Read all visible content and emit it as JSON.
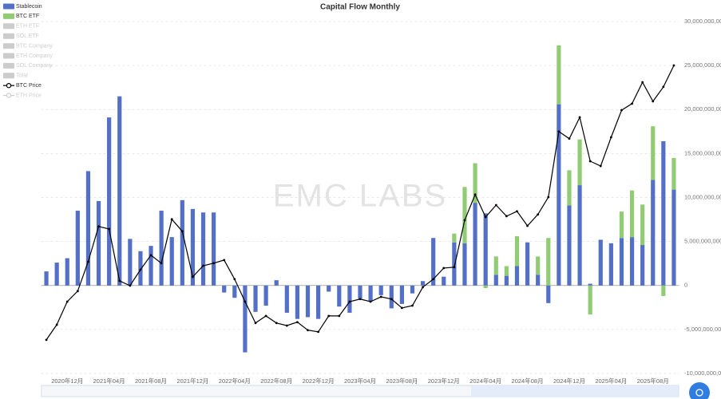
{
  "chart_data": {
    "type": "bar",
    "title": "Capital Flow Monthly",
    "watermark": "EMC LABS",
    "categories": [
      null,
      null,
      "2020年12月",
      null,
      null,
      null,
      "2021年04月",
      null,
      null,
      null,
      "2021年08月",
      null,
      null,
      null,
      "2021年12月",
      null,
      null,
      null,
      "2022年04月",
      null,
      null,
      null,
      "2022年08月",
      null,
      null,
      null,
      "2022年12月",
      null,
      null,
      null,
      "2023年04月",
      null,
      null,
      null,
      "2023年08月",
      null,
      null,
      null,
      "2023年12月",
      null,
      null,
      null,
      "2024年04月",
      null,
      null,
      null,
      "2024年08月",
      null,
      null,
      null,
      "2024年12月",
      null,
      null,
      null,
      "2025年04月",
      null,
      null,
      null,
      "2025年08月",
      null,
      null
    ],
    "series": [
      {
        "name": "Stablecoin",
        "color": "#5470c6",
        "values": [
          1600000000,
          2600000000,
          3100000000,
          8500000000,
          13000000000,
          9600000000,
          19100000000,
          21500000000,
          5300000000,
          3900000000,
          4500000000,
          8500000000,
          5500000000,
          9700000000,
          8700000000,
          8300000000,
          8300000000,
          -800000000,
          -1400000000,
          -7600000000,
          -3000000000,
          -2300000000,
          600000000,
          -3100000000,
          -3800000000,
          -3600000000,
          -3800000000,
          -700000000,
          -2400000000,
          -3100000000,
          -1500000000,
          -1800000000,
          -1100000000,
          -2600000000,
          -2100000000,
          -900000000,
          500000000,
          5400000000,
          1000000000,
          4900000000,
          4800000000,
          9400000000,
          8200000000,
          1200000000,
          1100000000,
          2200000000,
          4900000000,
          1200000000,
          -2000000000,
          20600000000,
          9100000000,
          11400000000,
          200000000,
          5200000000,
          4800000000,
          5400000000,
          5500000000,
          4600000000,
          12000000000,
          16400000000,
          10900000000
        ]
      },
      {
        "name": "BTC ETF",
        "color": "#91cc75",
        "values": [
          null,
          null,
          null,
          null,
          null,
          null,
          null,
          null,
          null,
          null,
          null,
          null,
          null,
          null,
          null,
          null,
          null,
          null,
          null,
          null,
          null,
          null,
          null,
          null,
          null,
          null,
          null,
          null,
          null,
          null,
          null,
          null,
          null,
          null,
          null,
          null,
          null,
          null,
          null,
          1000000000,
          6400000000,
          4500000000,
          -300000000,
          2100000000,
          1100000000,
          3400000000,
          0,
          2100000000,
          5400000000,
          6700000000,
          4000000000,
          5200000000,
          -3300000000,
          0,
          0,
          3000000000,
          5300000000,
          4600000000,
          6100000000,
          -1200000000,
          3600000000
        ]
      },
      {
        "name": "BTC Price",
        "color": "#000000",
        "type": "line",
        "axis": "y2",
        "values": [
          13800,
          19100,
          27200,
          30900,
          41200,
          53600,
          52700,
          34500,
          32800,
          38400,
          43500,
          40700,
          56100,
          51900,
          35900,
          39800,
          40700,
          41800,
          35100,
          27200,
          19700,
          22200,
          19700,
          18800,
          20000,
          17200,
          16600,
          22200,
          22200,
          27200,
          28100,
          27200,
          28900,
          28100,
          25000,
          25800,
          32300,
          35100,
          39000,
          39300,
          55800,
          64800,
          56900,
          61100,
          57200,
          58900,
          53800,
          57800,
          63900,
          86900,
          84400,
          91900,
          76500,
          74800,
          84900,
          94400,
          96700,
          104200,
          97500,
          102600,
          110100
        ]
      }
    ],
    "inactive_bar_series": [
      "ETH ETF",
      "SOL ETF",
      "BTC Company",
      "ETH Company",
      "SOL Company",
      "Total"
    ],
    "inactive_line_series": [
      "ETH Price"
    ],
    "inactive_color": "#cccccc",
    "ylim": [
      -10000000000,
      30000000000
    ],
    "yticks": [
      {
        "value": -10000000000,
        "label": "-10,000,000,000"
      },
      {
        "value": -5000000000,
        "label": "-5,000,000,000"
      },
      0,
      {
        "value": 5000000000,
        "label": "5,000,000,000"
      },
      {
        "value": 10000000000,
        "label": "10,000,000,000"
      },
      {
        "value": 15000000000,
        "label": "15,000,000,000"
      },
      {
        "value": 20000000000,
        "label": "20,000,000,000"
      },
      {
        "value": 25000000000,
        "label": "25,000,000,000"
      },
      {
        "value": 30000000000,
        "label": "30,000,000,000"
      }
    ],
    "y2lim": [
      2000,
      125500
    ],
    "grid": true
  }
}
